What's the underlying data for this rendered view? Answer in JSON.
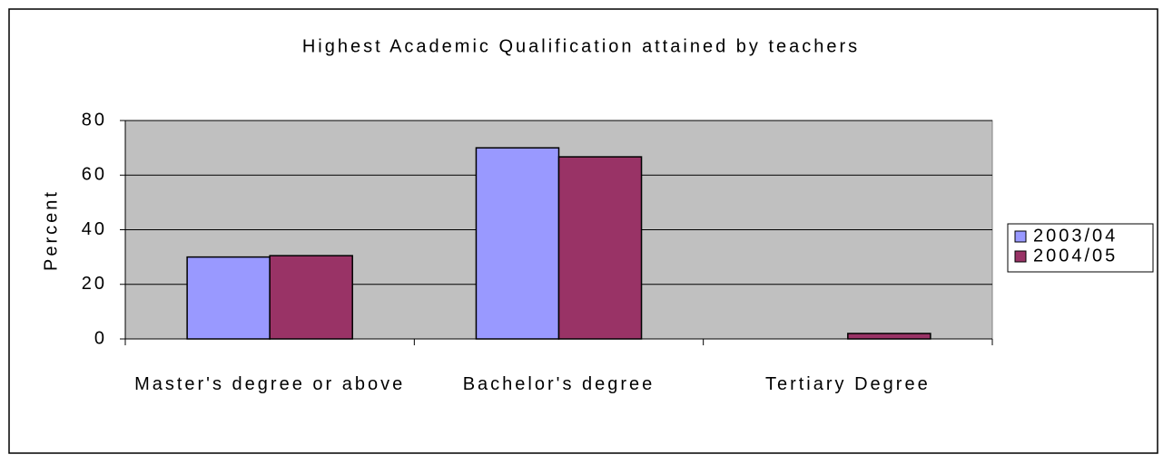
{
  "chart_data": {
    "type": "bar",
    "title": "Highest Academic Qualification attained by teachers",
    "y_label": "Percent",
    "categories": [
      "Master's degree or above",
      "Bachelor's degree",
      "Tertiary Degree"
    ],
    "series": [
      {
        "name": "2003/04",
        "color": "#9999ff",
        "values": [
          30,
          70,
          0
        ]
      },
      {
        "name": "2004/05",
        "color": "#993366",
        "values": [
          30.5,
          66.7,
          2
        ]
      }
    ],
    "ylim": [
      0,
      80
    ],
    "yticks": [
      0,
      20,
      40,
      60,
      80
    ],
    "grid": true,
    "legend": "right"
  }
}
